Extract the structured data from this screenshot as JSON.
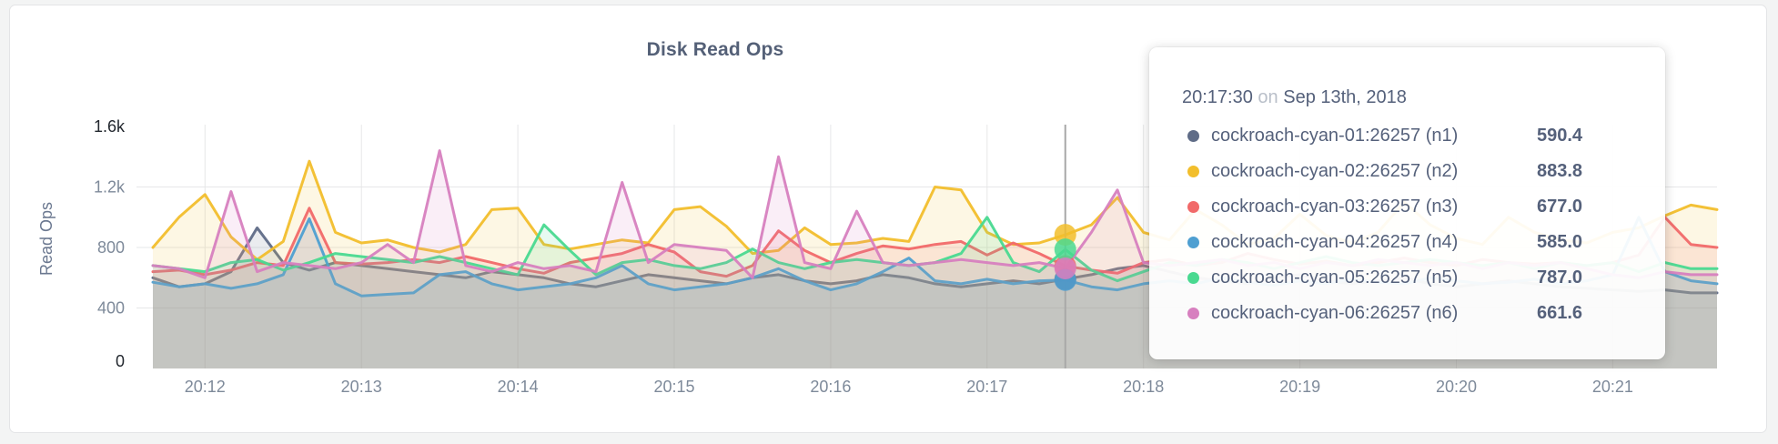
{
  "header": {
    "title": "Disk Read Ops"
  },
  "axes": {
    "y_title": "Read Ops",
    "y_ticks": [
      {
        "label": "1.6k",
        "value": 1600,
        "strong": true,
        "grid": false
      },
      {
        "label": "1.2k",
        "value": 1200,
        "strong": false,
        "grid": true
      },
      {
        "label": "800",
        "value": 800,
        "strong": false,
        "grid": true
      },
      {
        "label": "400",
        "value": 400,
        "strong": false,
        "grid": true
      },
      {
        "label": "0",
        "value": 0,
        "strong": true,
        "grid": false
      }
    ],
    "x_tick_labels": [
      "20:12",
      "20:13",
      "20:14",
      "20:15",
      "20:16",
      "20:17",
      "20:18",
      "20:19",
      "20:20",
      "20:21"
    ]
  },
  "chart_data": {
    "type": "area",
    "title": "Disk Read Ops",
    "ylabel": "Read Ops",
    "ylim": [
      0,
      1600
    ],
    "grid": true,
    "x_start": "20:11:40",
    "x_step_seconds": 10,
    "x_points": 61,
    "x_minute_ticks": [
      "20:12",
      "20:13",
      "20:14",
      "20:15",
      "20:16",
      "20:17",
      "20:18",
      "20:19",
      "20:20",
      "20:21"
    ],
    "hover_index": 35,
    "hover_time": "20:17:30",
    "series": [
      {
        "name": "cockroach-cyan-01:26257 (n1)",
        "color": "#5F6C87",
        "values": [
          600,
          540,
          560,
          640,
          930,
          700,
          650,
          700,
          680,
          660,
          640,
          620,
          600,
          640,
          620,
          600,
          560,
          540,
          580,
          620,
          600,
          580,
          560,
          600,
          620,
          580,
          560,
          580,
          620,
          600,
          560,
          540,
          560,
          580,
          560,
          590.4,
          620,
          660,
          680,
          640,
          600,
          580,
          560,
          600,
          620,
          580,
          560,
          580,
          600,
          560,
          540,
          560,
          580,
          560,
          540,
          530,
          520,
          510,
          520,
          500,
          500
        ]
      },
      {
        "name": "cockroach-cyan-02:26257 (n2)",
        "color": "#F2BE2C",
        "values": [
          800,
          1000,
          1150,
          870,
          720,
          840,
          1370,
          900,
          830,
          850,
          800,
          770,
          820,
          1050,
          1060,
          820,
          790,
          820,
          850,
          830,
          1050,
          1070,
          940,
          760,
          780,
          930,
          820,
          830,
          860,
          840,
          1200,
          1180,
          900,
          820,
          830,
          883.8,
          950,
          1130,
          900,
          850,
          1050,
          950,
          820,
          860,
          1020,
          880,
          830,
          900,
          1100,
          950,
          860,
          820,
          1000,
          900,
          850,
          830,
          900,
          930,
          1010,
          1080,
          1050
        ]
      },
      {
        "name": "cockroach-cyan-03:26257 (n3)",
        "color": "#F16969",
        "values": [
          640,
          650,
          620,
          650,
          700,
          680,
          1060,
          700,
          690,
          700,
          720,
          700,
          740,
          700,
          660,
          630,
          700,
          730,
          760,
          820,
          770,
          640,
          610,
          680,
          910,
          780,
          700,
          760,
          810,
          790,
          820,
          840,
          750,
          830,
          760,
          677,
          650,
          630,
          700,
          720,
          680,
          700,
          760,
          720,
          690,
          710,
          680,
          700,
          730,
          700,
          680,
          720,
          700,
          690,
          700,
          680,
          700,
          750,
          1000,
          820,
          800
        ]
      },
      {
        "name": "cockroach-cyan-04:26257 (n4)",
        "color": "#4E9FD1",
        "values": [
          570,
          540,
          560,
          530,
          560,
          620,
          990,
          560,
          480,
          490,
          500,
          620,
          640,
          560,
          520,
          540,
          560,
          600,
          680,
          560,
          520,
          540,
          560,
          600,
          660,
          580,
          520,
          560,
          640,
          730,
          580,
          560,
          590,
          560,
          580,
          585,
          540,
          520,
          560,
          580,
          560,
          600,
          570,
          550,
          580,
          560,
          590,
          570,
          560,
          600,
          580,
          560,
          570,
          590,
          560,
          580,
          620,
          1000,
          640,
          580,
          560
        ]
      },
      {
        "name": "cockroach-cyan-05:26257 (n5)",
        "color": "#49D990",
        "values": [
          680,
          660,
          640,
          700,
          720,
          650,
          700,
          760,
          740,
          720,
          700,
          740,
          700,
          660,
          620,
          950,
          780,
          620,
          700,
          720,
          680,
          660,
          700,
          790,
          700,
          660,
          700,
          720,
          700,
          680,
          700,
          760,
          1000,
          700,
          640,
          787,
          650,
          580,
          640,
          700,
          680,
          720,
          700,
          660,
          700,
          740,
          700,
          680,
          700,
          720,
          700,
          680,
          700,
          660,
          700,
          680,
          700,
          640,
          700,
          660,
          660
        ]
      },
      {
        "name": "cockroach-cyan-06:26257 (n6)",
        "color": "#D77FBF",
        "values": [
          680,
          660,
          600,
          1170,
          640,
          700,
          680,
          660,
          700,
          820,
          700,
          1440,
          680,
          640,
          700,
          660,
          680,
          640,
          1230,
          700,
          820,
          800,
          780,
          600,
          1400,
          700,
          660,
          1040,
          700,
          680,
          700,
          720,
          700,
          680,
          700,
          661.6,
          900,
          1180,
          700,
          680,
          700,
          720,
          680,
          700,
          660,
          700,
          680,
          720,
          700,
          680,
          700,
          660,
          700,
          680,
          700,
          660,
          620,
          600,
          640,
          620,
          620
        ]
      }
    ]
  },
  "tooltip": {
    "time": "20:17:30",
    "conjunction": "on",
    "date": "Sep 13th, 2018",
    "rows": [
      {
        "label": "cockroach-cyan-01:26257 (n1)",
        "value": "590.4",
        "color": "#5F6C87"
      },
      {
        "label": "cockroach-cyan-02:26257 (n2)",
        "value": "883.8",
        "color": "#F2BE2C"
      },
      {
        "label": "cockroach-cyan-03:26257 (n3)",
        "value": "677.0",
        "color": "#F16969"
      },
      {
        "label": "cockroach-cyan-04:26257 (n4)",
        "value": "585.0",
        "color": "#4E9FD1"
      },
      {
        "label": "cockroach-cyan-05:26257 (n5)",
        "value": "787.0",
        "color": "#49D990"
      },
      {
        "label": "cockroach-cyan-06:26257 (n6)",
        "value": "661.6",
        "color": "#D77FBF"
      }
    ]
  },
  "style": {
    "grid_color": "#e6e7e8",
    "hover_line_color": "#a8a8a8",
    "tick_label_color": "#7e8a9a",
    "tick_label_strong_color": "#22272e"
  }
}
